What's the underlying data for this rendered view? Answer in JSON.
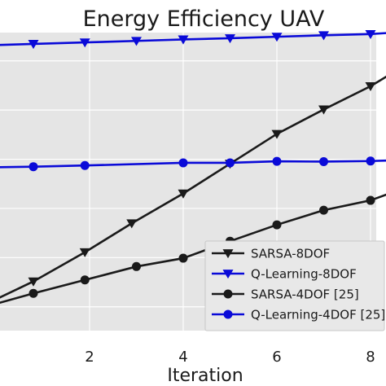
{
  "chart_data": {
    "type": "line",
    "title": "Energy Efficiency UAV",
    "xlabel": "Iteration",
    "ylabel": "",
    "xlim": [
      0,
      8.4
    ],
    "ylim": [
      0,
      1
    ],
    "x_ticks": [
      2,
      4,
      6,
      8
    ],
    "grid": true,
    "legend_position": "bottom-right",
    "colors": {
      "background": "#e5e5e5",
      "grid": "#ffffff",
      "black": "#1a1a1a",
      "blue": "#0a0ad8"
    },
    "series": [
      {
        "name": "SARSA-8DOF",
        "color": "#1a1a1a",
        "marker": "triangle-down",
        "x": [
          0,
          0.8,
          1.9,
          2.9,
          4.0,
          5.0,
          6.0,
          7.0,
          8.0,
          8.4
        ],
        "y": [
          0.105,
          0.165,
          0.263,
          0.36,
          0.46,
          0.56,
          0.66,
          0.742,
          0.82,
          0.858
        ]
      },
      {
        "name": "Q-Learning-8DOF",
        "color": "#0a0ad8",
        "marker": "triangle-down",
        "x": [
          0,
          0.8,
          1.9,
          3.0,
          4.0,
          5.0,
          6.0,
          7.0,
          8.0,
          8.4
        ],
        "y": [
          0.958,
          0.962,
          0.967,
          0.972,
          0.977,
          0.981,
          0.986,
          0.991,
          0.995,
          0.999
        ]
      },
      {
        "name": "SARSA-4DOF [25]",
        "color": "#1a1a1a",
        "marker": "circle",
        "x": [
          0,
          0.8,
          1.9,
          3.0,
          4.0,
          5.0,
          6.0,
          7.0,
          8.0,
          8.4
        ],
        "y": [
          0.09,
          0.125,
          0.17,
          0.215,
          0.243,
          0.3,
          0.355,
          0.404,
          0.437,
          0.46
        ]
      },
      {
        "name": "Q-Learning-4DOF [25]",
        "color": "#0a0ad8",
        "marker": "circle",
        "x": [
          0,
          0.8,
          1.9,
          4.0,
          5.0,
          6.0,
          7.0,
          8.0,
          8.4
        ],
        "y": [
          0.548,
          0.55,
          0.554,
          0.563,
          0.563,
          0.568,
          0.567,
          0.569,
          0.571
        ]
      }
    ]
  }
}
